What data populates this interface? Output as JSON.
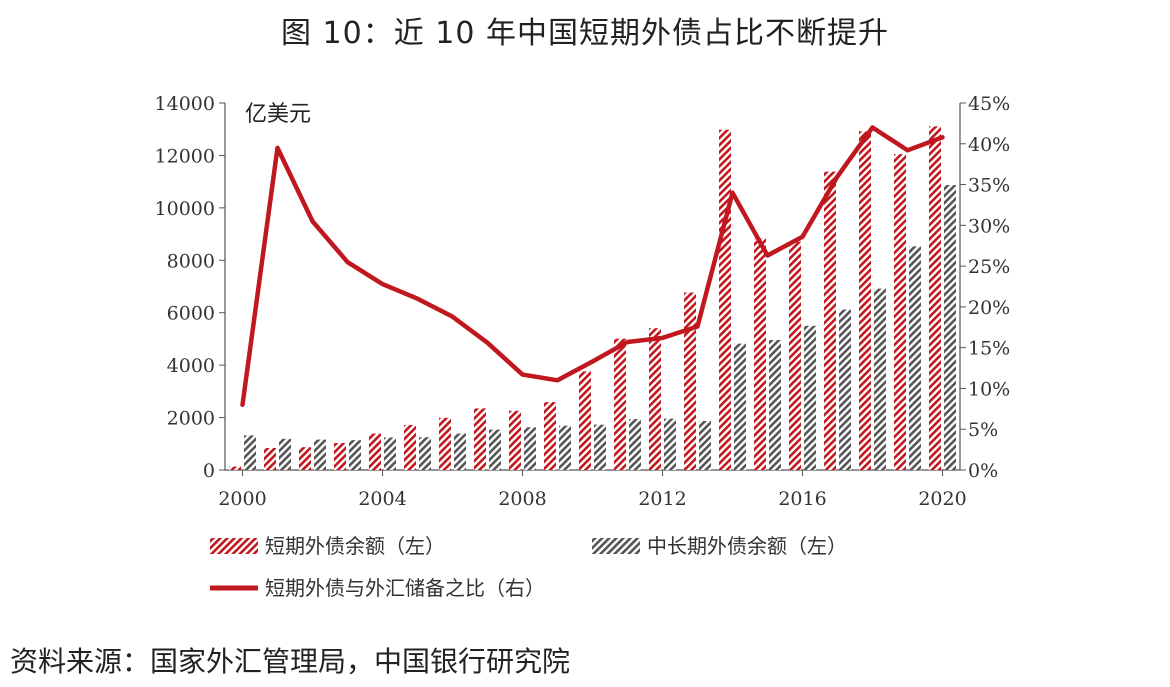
{
  "title": "图 10：近 10 年中国短期外债占比不断提升",
  "source": "资料来源：国家外汇管理局，中国银行研究院",
  "colors": {
    "short_term": "#c0181e",
    "long_term": "#555555",
    "ratio_line": "#c0181e"
  },
  "chart_data": {
    "type": "bar",
    "unit_label": "亿美元",
    "x": [
      2000,
      2001,
      2002,
      2003,
      2004,
      2005,
      2006,
      2007,
      2008,
      2009,
      2010,
      2011,
      2012,
      2013,
      2014,
      2015,
      2016,
      2017,
      2018,
      2019,
      2020
    ],
    "x_tick_labels": [
      "2000",
      "2004",
      "2008",
      "2012",
      "2016",
      "2020"
    ],
    "y_left_ticks": [
      "0",
      "2000",
      "4000",
      "6000",
      "8000",
      "10000",
      "12000",
      "14000"
    ],
    "y_right_ticks": [
      "0%",
      "5%",
      "10%",
      "15%",
      "20%",
      "25%",
      "30%",
      "35%",
      "40%",
      "45%"
    ],
    "ylim_left": [
      0,
      14000
    ],
    "ylim_right": [
      0,
      0.45
    ],
    "series": [
      {
        "name": "短期外债余额（左）",
        "type": "bar",
        "axis": "left",
        "pattern": "hatched",
        "values": [
          130,
          840,
          870,
          1030,
          1390,
          1720,
          1990,
          2350,
          2260,
          2590,
          3760,
          5010,
          5410,
          6770,
          12980,
          8830,
          8710,
          11380,
          12920,
          12050,
          13110
        ]
      },
      {
        "name": "中长期外债余额（左）",
        "type": "bar",
        "axis": "left",
        "pattern": "hatched",
        "values": [
          1320,
          1190,
          1160,
          1140,
          1240,
          1250,
          1390,
          1540,
          1630,
          1690,
          1730,
          1940,
          1960,
          1870,
          4820,
          4960,
          5500,
          6120,
          6920,
          8530,
          10870
        ]
      },
      {
        "name": "短期外债与外汇储备之比（右）",
        "type": "line",
        "axis": "right",
        "values": [
          0.08,
          0.395,
          0.305,
          0.255,
          0.228,
          0.21,
          0.188,
          0.156,
          0.117,
          0.11,
          0.133,
          0.157,
          0.162,
          0.176,
          0.34,
          0.263,
          0.286,
          0.36,
          0.42,
          0.392,
          0.408
        ]
      }
    ]
  }
}
